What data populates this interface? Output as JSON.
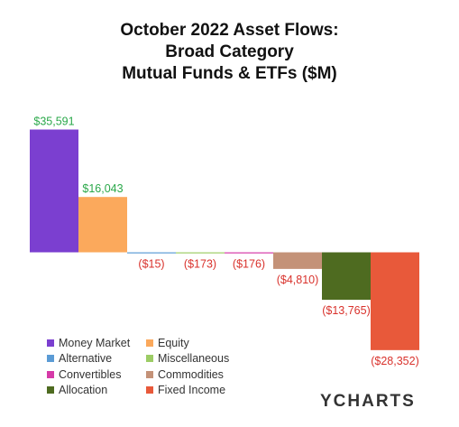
{
  "chart_data": {
    "type": "bar",
    "title": [
      "October 2022 Asset Flows:",
      "Broad Category",
      "Mutual Funds & ETFs ($M)"
    ],
    "categories": [
      "Money Market",
      "Equity",
      "Alternative",
      "Miscellaneous",
      "Convertibles",
      "Commodities",
      "Allocation",
      "Fixed Income"
    ],
    "values": [
      35591,
      16043,
      -15,
      -173,
      -176,
      -4810,
      -13765,
      -28352
    ],
    "data_labels": [
      "$35,591",
      "$16,043",
      "($15)",
      "($173)",
      "($176)",
      "($4,810)",
      "($13,765)",
      "($28,352)"
    ],
    "colors": [
      "#7b3fd0",
      "#fba95c",
      "#5b9bd5",
      "#9ccc65",
      "#d63aa8",
      "#c49278",
      "#4e6b20",
      "#e8593a"
    ],
    "positive_label_color": "#2aa84a",
    "negative_label_color": "#d9322c",
    "ylim": [
      -30000,
      36000
    ],
    "legend_position": "bottom-left",
    "grid": false
  },
  "legend": [
    {
      "label": "Money Market",
      "color": "#7b3fd0"
    },
    {
      "label": "Equity",
      "color": "#fba95c"
    },
    {
      "label": "Alternative",
      "color": "#5b9bd5"
    },
    {
      "label": "Miscellaneous",
      "color": "#9ccc65"
    },
    {
      "label": "Convertibles",
      "color": "#d63aa8"
    },
    {
      "label": "Commodities",
      "color": "#c49278"
    },
    {
      "label": "Allocation",
      "color": "#4e6b20"
    },
    {
      "label": "Fixed Income",
      "color": "#e8593a"
    }
  ],
  "brand": {
    "logo_text": "YCHARTS"
  }
}
